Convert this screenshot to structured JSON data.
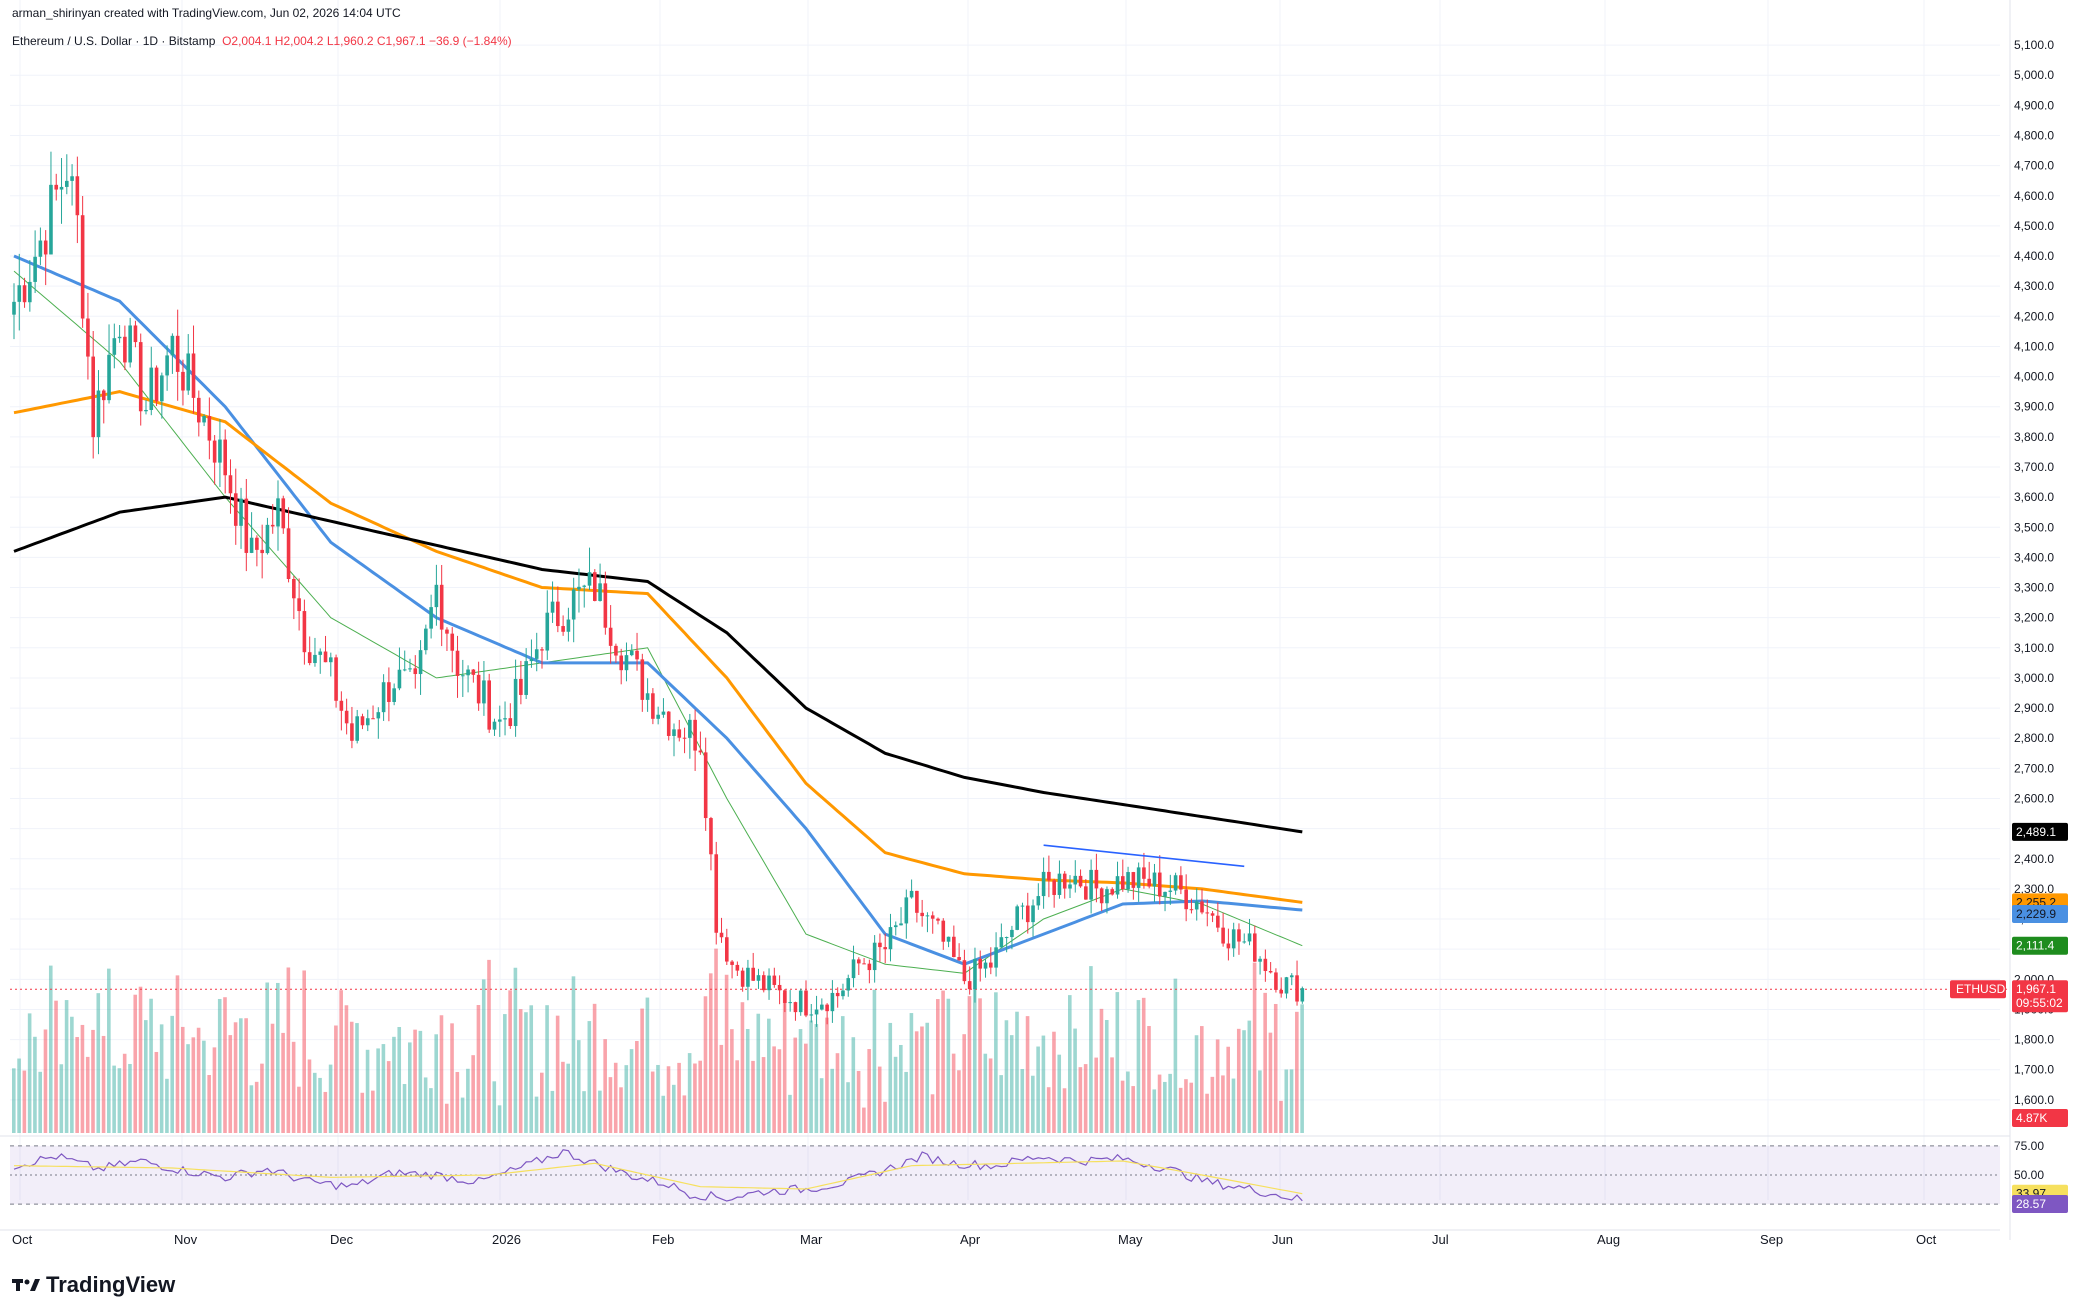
{
  "header": {
    "creator": "arman_shirinyan created with TradingView.com, Jun 02, 2026 14:04 UTC",
    "symbol": "Ethereum / U.S. Dollar · 1D · Bitstamp",
    "open": "O2,004.1",
    "high": "H2,004.2",
    "low": "L1,960.2",
    "close": "C1,967.1",
    "change": "−36.9 (−1.84%)"
  },
  "brand": "TradingView",
  "colors": {
    "up": "#26a69a",
    "down": "#f23645",
    "ma_fast": "#4caf50",
    "ma_mid": "#4a90e2",
    "ma_slow": "#ff9800",
    "ma_long": "#000000",
    "rsi": "#7e57c2",
    "rsi_ma": "#f6e05e"
  },
  "chart_data": {
    "type": "candlestick",
    "ylim": [
      1500,
      5150
    ],
    "y_ticks": [
      "5,100.0",
      "5,000.0",
      "4,900.0",
      "4,800.0",
      "4,700.0",
      "4,600.0",
      "4,500.0",
      "4,400.0",
      "4,300.0",
      "4,200.0",
      "4,100.0",
      "4,000.0",
      "3,900.0",
      "3,800.0",
      "3,700.0",
      "3,600.0",
      "3,500.0",
      "3,400.0",
      "3,300.0",
      "3,200.0",
      "3,100.0",
      "3,000.0",
      "2,900.0",
      "2,800.0",
      "2,700.0",
      "2,600.0",
      "2,500.0",
      "2,400.0",
      "2,300.0",
      "2,200.0",
      "2,100.0",
      "2,000.0",
      "1,900.0",
      "1,800.0",
      "1,700.0",
      "1,600.0"
    ],
    "x_ticks": [
      "Oct",
      "Nov",
      "Dec",
      "2026",
      "Feb",
      "Mar",
      "Apr",
      "May",
      "Jun",
      "Jul",
      "Aug",
      "Sep",
      "Oct"
    ],
    "price_keypoints": [
      [
        0,
        4250
      ],
      [
        5,
        4450
      ],
      [
        10,
        4700
      ],
      [
        12,
        4500
      ],
      [
        15,
        3850
      ],
      [
        20,
        4200
      ],
      [
        25,
        3900
      ],
      [
        30,
        4100
      ],
      [
        35,
        3900
      ],
      [
        40,
        3700
      ],
      [
        45,
        3400
      ],
      [
        50,
        3550
      ],
      [
        55,
        3150
      ],
      [
        60,
        3000
      ],
      [
        64,
        2800
      ],
      [
        68,
        2900
      ],
      [
        72,
        3000
      ],
      [
        76,
        2950
      ],
      [
        80,
        3300
      ],
      [
        84,
        3050
      ],
      [
        88,
        2950
      ],
      [
        92,
        2850
      ],
      [
        96,
        2950
      ],
      [
        100,
        3150
      ],
      [
        105,
        3250
      ],
      [
        110,
        3300
      ],
      [
        115,
        3100
      ],
      [
        120,
        2950
      ],
      [
        125,
        2850
      ],
      [
        130,
        2800
      ],
      [
        133,
        2200
      ],
      [
        136,
        2050
      ],
      [
        140,
        2000
      ],
      [
        145,
        1950
      ],
      [
        150,
        1920
      ],
      [
        156,
        1950
      ],
      [
        160,
        2050
      ],
      [
        165,
        2100
      ],
      [
        170,
        2250
      ],
      [
        175,
        2150
      ],
      [
        180,
        2000
      ],
      [
        185,
        2050
      ],
      [
        190,
        2200
      ],
      [
        195,
        2300
      ],
      [
        200,
        2350
      ],
      [
        205,
        2300
      ],
      [
        210,
        2330
      ],
      [
        215,
        2320
      ],
      [
        220,
        2300
      ],
      [
        225,
        2250
      ],
      [
        230,
        2150
      ],
      [
        235,
        2100
      ],
      [
        240,
        1990
      ],
      [
        244,
        1967
      ]
    ],
    "series": [
      {
        "name": "MA fast",
        "x": [
          0,
          20,
          40,
          60,
          80,
          100,
          120,
          135,
          150,
          165,
          180,
          195,
          210,
          225,
          244
        ],
        "values": [
          4350,
          4050,
          3600,
          3200,
          3000,
          3050,
          3100,
          2600,
          2150,
          2050,
          2020,
          2200,
          2300,
          2250,
          2111.4
        ]
      },
      {
        "name": "MA mid",
        "x": [
          0,
          20,
          40,
          60,
          80,
          100,
          120,
          135,
          150,
          165,
          180,
          195,
          210,
          225,
          244
        ],
        "values": [
          4400,
          4250,
          3900,
          3450,
          3200,
          3050,
          3050,
          2800,
          2500,
          2150,
          2050,
          2150,
          2250,
          2260,
          2229.9
        ]
      },
      {
        "name": "MA slow",
        "x": [
          0,
          20,
          40,
          60,
          80,
          100,
          120,
          135,
          150,
          165,
          180,
          195,
          210,
          225,
          244
        ],
        "values": [
          3880,
          3950,
          3850,
          3580,
          3420,
          3300,
          3280,
          3000,
          2650,
          2420,
          2350,
          2330,
          2320,
          2300,
          2255.2
        ]
      },
      {
        "name": "MA long",
        "x": [
          0,
          20,
          40,
          60,
          80,
          100,
          120,
          135,
          150,
          165,
          180,
          195,
          210,
          225,
          244
        ],
        "values": [
          3420,
          3550,
          3600,
          3520,
          3440,
          3360,
          3320,
          3150,
          2900,
          2750,
          2670,
          2620,
          2580,
          2540,
          2489.1
        ]
      }
    ],
    "trendline": [
      [
        195,
        2445
      ],
      [
        233,
        2375
      ]
    ],
    "last_price": "1,967.1",
    "countdown": "09:55:02",
    "symbol_tag": "ETHUSD",
    "price_labels": {
      "ma_long": "2,489.1",
      "ma_slow": "2,255.2",
      "ma_mid": "2,229.9",
      "ma_fast": "2,111.4"
    },
    "volume_label": "4.87K",
    "rsi": {
      "levels": [
        "75.00",
        "50.00"
      ],
      "value": "28.57",
      "ma_value": "33.97",
      "keypoints": [
        [
          0,
          58
        ],
        [
          8,
          66
        ],
        [
          16,
          55
        ],
        [
          24,
          62
        ],
        [
          32,
          54
        ],
        [
          40,
          48
        ],
        [
          48,
          55
        ],
        [
          56,
          44
        ],
        [
          64,
          40
        ],
        [
          72,
          52
        ],
        [
          80,
          50
        ],
        [
          88,
          44
        ],
        [
          96,
          56
        ],
        [
          104,
          70
        ],
        [
          110,
          60
        ],
        [
          118,
          48
        ],
        [
          124,
          42
        ],
        [
          128,
          34
        ],
        [
          135,
          30
        ],
        [
          142,
          36
        ],
        [
          150,
          38
        ],
        [
          158,
          44
        ],
        [
          166,
          56
        ],
        [
          172,
          66
        ],
        [
          178,
          60
        ],
        [
          186,
          58
        ],
        [
          194,
          66
        ],
        [
          202,
          62
        ],
        [
          210,
          64
        ],
        [
          218,
          56
        ],
        [
          226,
          44
        ],
        [
          234,
          38
        ],
        [
          244,
          28.57
        ]
      ],
      "ma_keypoints": [
        [
          0,
          58
        ],
        [
          30,
          56
        ],
        [
          60,
          48
        ],
        [
          90,
          50
        ],
        [
          110,
          60
        ],
        [
          130,
          40
        ],
        [
          150,
          38
        ],
        [
          170,
          58
        ],
        [
          190,
          60
        ],
        [
          210,
          62
        ],
        [
          225,
          50
        ],
        [
          244,
          33.97
        ]
      ]
    }
  }
}
